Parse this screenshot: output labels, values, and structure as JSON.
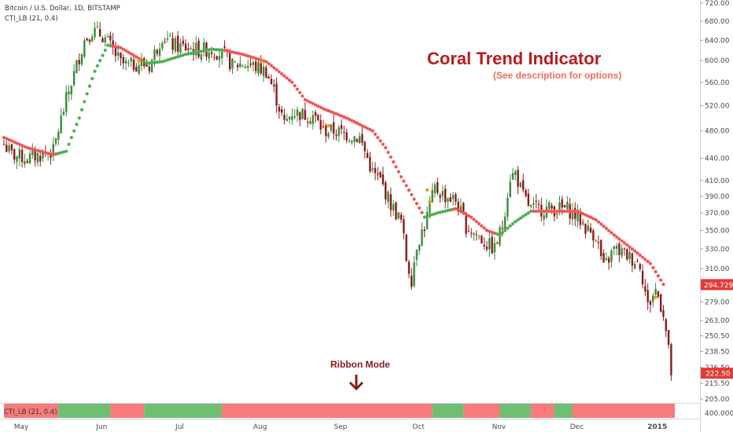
{
  "header": {
    "symbol": "Bitcoin / U.S. Dollar, 1D, BITSTAMP",
    "indicator": "CTI_LB (21, 0.4)"
  },
  "annotation": {
    "title": "Coral Trend Indicator",
    "subtitle": "(See description for options)",
    "ribbon_label": "Ribbon Mode",
    "ribbon_pane_label": "CTI_LB (21, 0.4)"
  },
  "colors": {
    "up_candle": "#3a8a3a",
    "down_candle": "#8b1a1a",
    "coral_up": "#4caf50",
    "coral_down": "#f05454",
    "ribbon_up": "#6fbf73",
    "ribbon_down": "#f77b7b",
    "title": "#b71c1c",
    "subtitle": "#ef6c5a",
    "price_tag": "#e53935",
    "signal_dot": "#ff9800"
  },
  "chart_data": {
    "type": "candlestick",
    "y_scale": "log",
    "ylim": [
      205,
      720
    ],
    "y_ticks": [
      "720.00",
      "680.00",
      "640.00",
      "600.00",
      "560.00",
      "520.00",
      "480.00",
      "440.00",
      "410.00",
      "390.00",
      "370.00",
      "350.00",
      "330.00",
      "310.00",
      "279.00",
      "263.00",
      "250.50",
      "238.50",
      "226.50",
      "215.50",
      "205.00"
    ],
    "ribbon_axis_label": "400.0000",
    "x_ticks": [
      "May",
      "Jun",
      "Jul",
      "Aug",
      "Sep",
      "Oct",
      "Nov",
      "Dec",
      "2015"
    ],
    "x_range": [
      "2014-05-01",
      "2015-01-15"
    ],
    "price_labels": {
      "coral_last": "294.7294",
      "close_last": "222.50"
    },
    "price_key_points": [
      [
        "2014-05-01",
        460
      ],
      [
        "2014-05-04",
        445
      ],
      [
        "2014-05-10",
        440
      ],
      [
        "2014-05-15",
        445
      ],
      [
        "2014-05-20",
        450
      ],
      [
        "2014-05-25",
        530
      ],
      [
        "2014-05-28",
        575
      ],
      [
        "2014-06-01",
        640
      ],
      [
        "2014-06-04",
        660
      ],
      [
        "2014-06-08",
        650
      ],
      [
        "2014-06-12",
        620
      ],
      [
        "2014-06-15",
        595
      ],
      [
        "2014-06-18",
        590
      ],
      [
        "2014-06-22",
        595
      ],
      [
        "2014-06-26",
        590
      ],
      [
        "2014-07-01",
        650
      ],
      [
        "2014-07-05",
        630
      ],
      [
        "2014-07-10",
        625
      ],
      [
        "2014-07-15",
        620
      ],
      [
        "2014-07-20",
        622
      ],
      [
        "2014-07-25",
        610
      ],
      [
        "2014-07-28",
        590
      ],
      [
        "2014-08-01",
        595
      ],
      [
        "2014-08-05",
        590
      ],
      [
        "2014-08-10",
        580
      ],
      [
        "2014-08-13",
        545
      ],
      [
        "2014-08-17",
        490
      ],
      [
        "2014-08-20",
        510
      ],
      [
        "2014-08-25",
        505
      ],
      [
        "2014-08-28",
        505
      ],
      [
        "2014-09-01",
        480
      ],
      [
        "2014-09-05",
        480
      ],
      [
        "2014-09-10",
        475
      ],
      [
        "2014-09-15",
        470
      ],
      [
        "2014-09-20",
        420
      ],
      [
        "2014-09-23",
        410
      ],
      [
        "2014-09-27",
        380
      ],
      [
        "2014-10-01",
        360
      ],
      [
        "2014-10-03",
        320
      ],
      [
        "2014-10-05",
        300
      ],
      [
        "2014-10-07",
        335
      ],
      [
        "2014-10-10",
        355
      ],
      [
        "2014-10-14",
        400
      ],
      [
        "2014-10-18",
        390
      ],
      [
        "2014-10-22",
        385
      ],
      [
        "2014-10-26",
        355
      ],
      [
        "2014-10-30",
        345
      ],
      [
        "2014-11-03",
        335
      ],
      [
        "2014-11-06",
        330
      ],
      [
        "2014-11-09",
        355
      ],
      [
        "2014-11-12",
        415
      ],
      [
        "2014-11-14",
        420
      ],
      [
        "2014-11-17",
        390
      ],
      [
        "2014-11-20",
        375
      ],
      [
        "2014-11-25",
        375
      ],
      [
        "2014-11-30",
        375
      ],
      [
        "2014-12-04",
        375
      ],
      [
        "2014-12-08",
        365
      ],
      [
        "2014-12-12",
        350
      ],
      [
        "2014-12-15",
        345
      ],
      [
        "2014-12-18",
        310
      ],
      [
        "2014-12-22",
        330
      ],
      [
        "2014-12-26",
        325
      ],
      [
        "2014-12-29",
        320
      ],
      [
        "2015-01-01",
        315
      ],
      [
        "2015-01-04",
        275
      ],
      [
        "2015-01-07",
        290
      ],
      [
        "2015-01-10",
        270
      ],
      [
        "2015-01-13",
        222.5
      ]
    ],
    "coral_key_points": [
      [
        "2014-05-01",
        470
      ],
      [
        "2014-05-10",
        455
      ],
      [
        "2014-05-20",
        445
      ],
      [
        "2014-05-25",
        450
      ],
      [
        "2014-05-30",
        500
      ],
      [
        "2014-06-05",
        580
      ],
      [
        "2014-06-10",
        630
      ],
      [
        "2014-06-15",
        625
      ],
      [
        "2014-06-20",
        610
      ],
      [
        "2014-06-25",
        595
      ],
      [
        "2014-07-01",
        598
      ],
      [
        "2014-07-10",
        612
      ],
      [
        "2014-07-20",
        622
      ],
      [
        "2014-07-25",
        620
      ],
      [
        "2014-08-01",
        612
      ],
      [
        "2014-08-10",
        598
      ],
      [
        "2014-08-20",
        560
      ],
      [
        "2014-08-25",
        530
      ],
      [
        "2014-09-01",
        515
      ],
      [
        "2014-09-10",
        500
      ],
      [
        "2014-09-20",
        480
      ],
      [
        "2014-09-25",
        455
      ],
      [
        "2014-10-01",
        415
      ],
      [
        "2014-10-05",
        392
      ],
      [
        "2014-10-10",
        365
      ],
      [
        "2014-10-15",
        370
      ],
      [
        "2014-10-22",
        375
      ],
      [
        "2014-10-28",
        365
      ],
      [
        "2014-11-03",
        350
      ],
      [
        "2014-11-08",
        345
      ],
      [
        "2014-11-14",
        360
      ],
      [
        "2014-11-20",
        372
      ],
      [
        "2014-12-01",
        372
      ],
      [
        "2014-12-08",
        372
      ],
      [
        "2014-12-15",
        362
      ],
      [
        "2014-12-22",
        345
      ],
      [
        "2014-12-29",
        330
      ],
      [
        "2015-01-05",
        315
      ],
      [
        "2015-01-10",
        295
      ]
    ],
    "coral_up_ranges": [
      [
        "2014-05-22",
        "2014-06-11"
      ],
      [
        "2014-06-24",
        "2014-07-24"
      ],
      [
        "2014-10-10",
        "2014-10-20"
      ],
      [
        "2014-11-07",
        "2014-11-20"
      ]
    ],
    "ribbon_segments": [
      {
        "start": "2014-05-01",
        "end": "2014-05-22",
        "trend": "down"
      },
      {
        "start": "2014-05-22",
        "end": "2014-06-11",
        "trend": "up"
      },
      {
        "start": "2014-06-11",
        "end": "2014-06-24",
        "trend": "down"
      },
      {
        "start": "2014-06-24",
        "end": "2014-07-24",
        "trend": "up"
      },
      {
        "start": "2014-07-24",
        "end": "2014-10-13",
        "trend": "down"
      },
      {
        "start": "2014-10-13",
        "end": "2014-10-25",
        "trend": "up"
      },
      {
        "start": "2014-10-25",
        "end": "2014-11-08",
        "trend": "down"
      },
      {
        "start": "2014-11-08",
        "end": "2014-11-20",
        "trend": "up"
      },
      {
        "start": "2014-11-20",
        "end": "2014-11-29",
        "trend": "down"
      },
      {
        "start": "2014-11-29",
        "end": "2014-12-06",
        "trend": "up"
      },
      {
        "start": "2014-12-06",
        "end": "2015-01-15",
        "trend": "down"
      }
    ],
    "signal_dots": [
      [
        "2014-06-22",
        600
      ],
      [
        "2014-08-08",
        598
      ],
      [
        "2014-09-03",
        488
      ],
      [
        "2014-10-11",
        398
      ],
      [
        "2014-10-12",
        383
      ],
      [
        "2015-01-07",
        283
      ]
    ]
  }
}
